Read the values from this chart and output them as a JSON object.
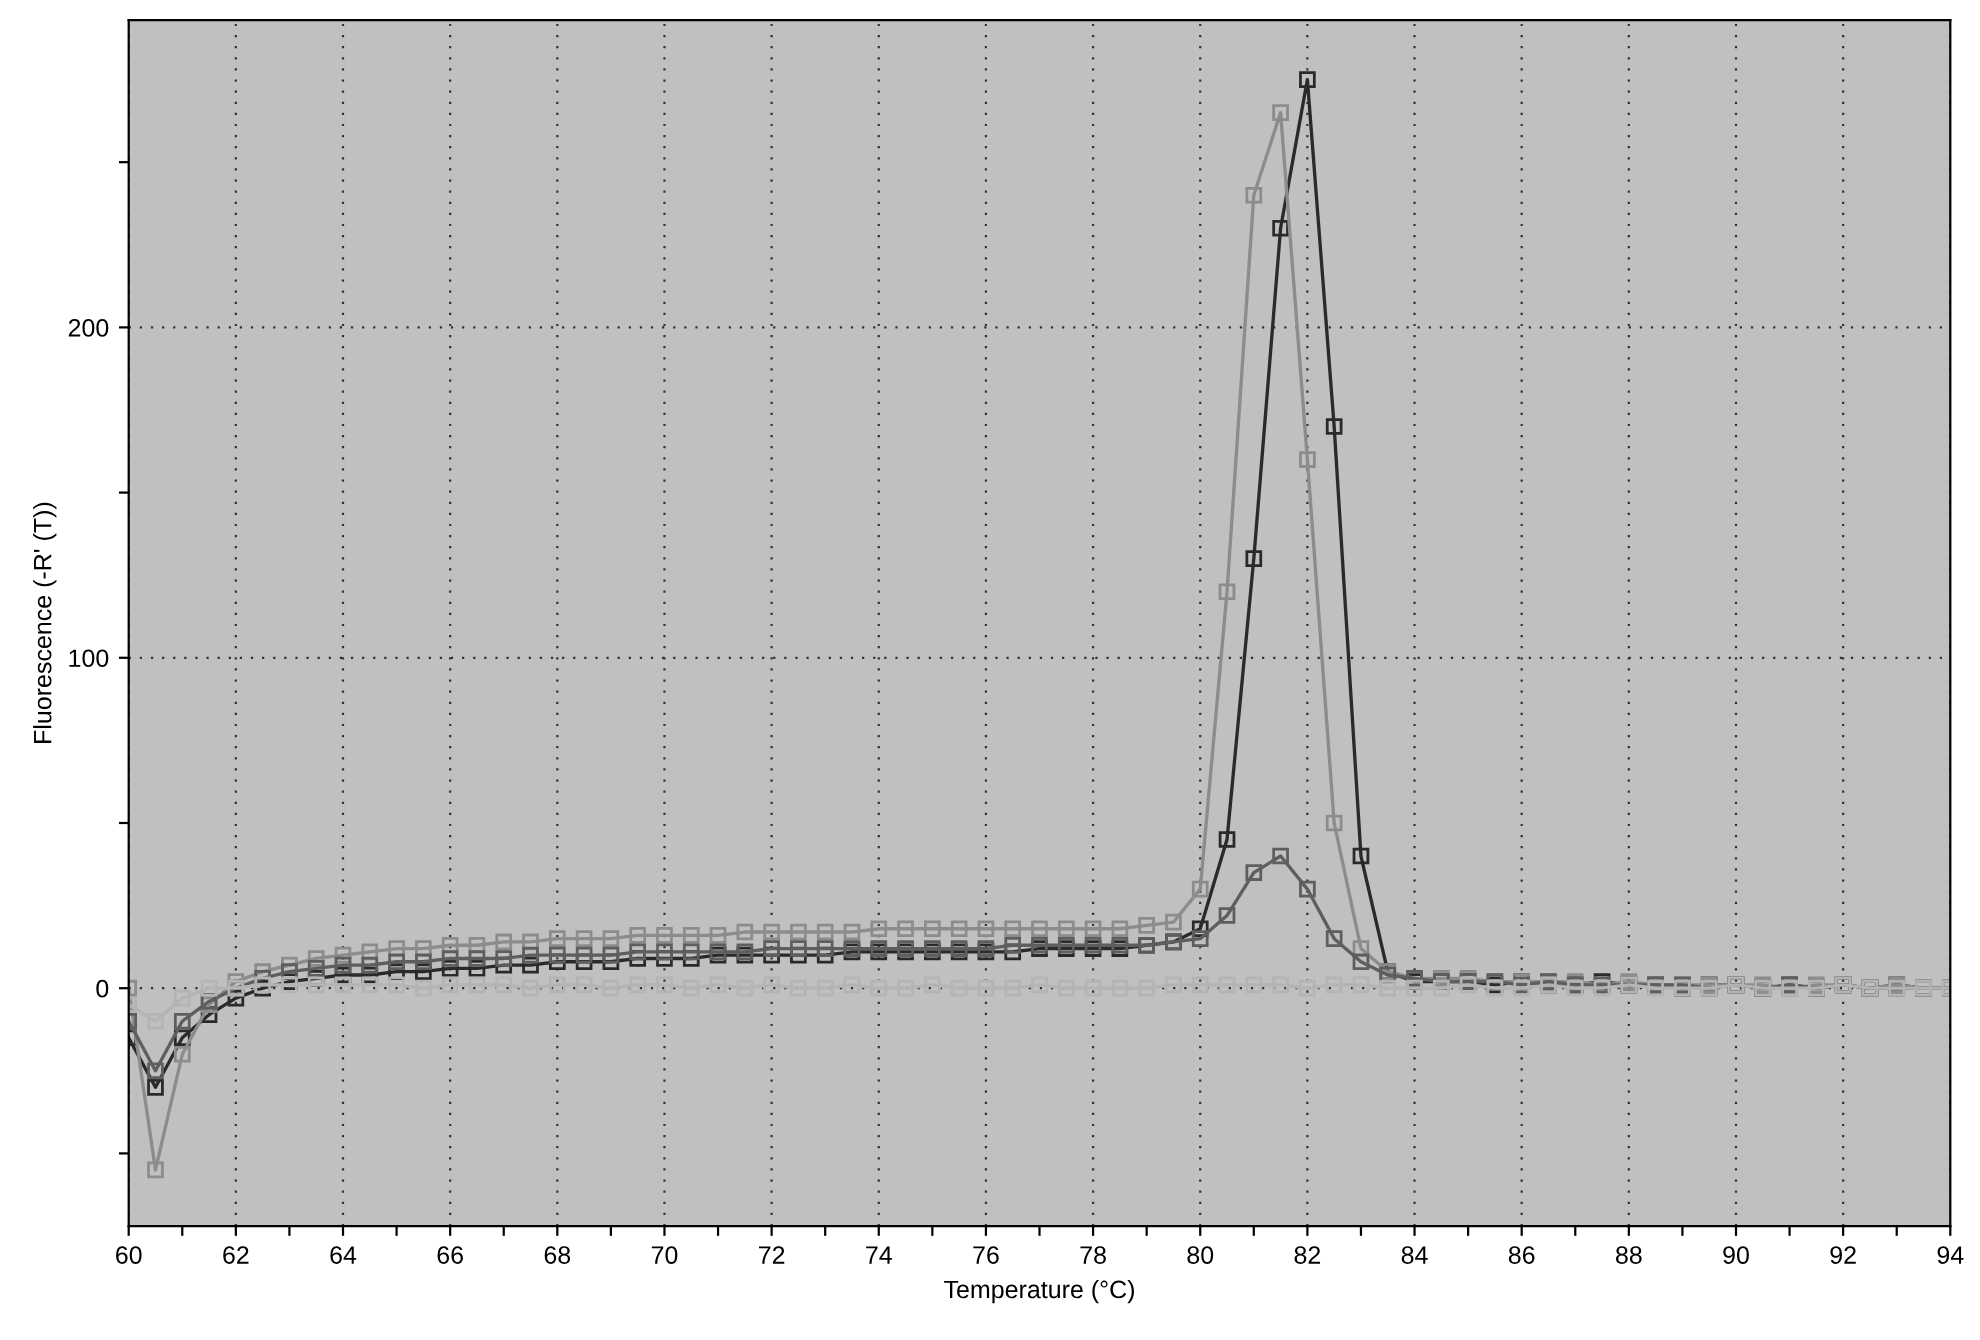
{
  "chart_data": {
    "type": "line",
    "xlabel": "Temperature (°C)",
    "ylabel": "Fluorescence (-R' (T))",
    "x": [
      60,
      60.5,
      61,
      61.5,
      62,
      62.5,
      63,
      63.5,
      64,
      64.5,
      65,
      65.5,
      66,
      66.5,
      67,
      67.5,
      68,
      68.5,
      69,
      69.5,
      70,
      70.5,
      71,
      71.5,
      72,
      72.5,
      73,
      73.5,
      74,
      74.5,
      75,
      75.5,
      76,
      76.5,
      77,
      77.5,
      78,
      78.5,
      79,
      79.5,
      80,
      80.5,
      81,
      81.5,
      82,
      82.5,
      83,
      83.5,
      84,
      84.5,
      85,
      85.5,
      86,
      86.5,
      87,
      87.5,
      88,
      88.5,
      89,
      89.5,
      90,
      90.5,
      91,
      91.5,
      92,
      92.5,
      93,
      93.5,
      94
    ],
    "series": [
      {
        "color": "#2a2a2a",
        "values": [
          -15,
          -30,
          -15,
          -8,
          -3,
          0,
          2,
          3,
          4,
          4,
          5,
          5,
          6,
          6,
          7,
          7,
          8,
          8,
          8,
          9,
          9,
          9,
          10,
          10,
          10,
          10,
          10,
          11,
          11,
          11,
          11,
          11,
          11,
          11,
          12,
          12,
          12,
          12,
          13,
          14,
          18,
          45,
          130,
          230,
          275,
          170,
          40,
          5,
          2,
          2,
          2,
          1,
          2,
          1,
          1,
          2,
          1,
          1,
          0,
          1,
          1,
          0,
          1,
          0,
          1,
          0,
          1,
          0,
          0
        ]
      },
      {
        "color": "#8c8c8c",
        "values": [
          0,
          -55,
          -20,
          -5,
          2,
          5,
          7,
          9,
          10,
          11,
          12,
          12,
          13,
          13,
          14,
          14,
          15,
          15,
          15,
          16,
          16,
          16,
          16,
          17,
          17,
          17,
          17,
          17,
          18,
          18,
          18,
          18,
          18,
          18,
          18,
          18,
          18,
          18,
          19,
          20,
          30,
          120,
          240,
          265,
          160,
          50,
          12,
          5,
          3,
          3,
          3,
          2,
          2,
          2,
          2,
          1,
          2,
          1,
          1,
          1,
          1,
          1,
          0,
          1,
          1,
          0,
          1,
          0,
          0
        ]
      },
      {
        "color": "#5e5e5e",
        "values": [
          -10,
          -25,
          -10,
          -4,
          0,
          3,
          5,
          6,
          7,
          7,
          8,
          8,
          9,
          9,
          9,
          10,
          10,
          10,
          10,
          11,
          11,
          11,
          11,
          11,
          12,
          12,
          12,
          12,
          12,
          12,
          12,
          12,
          12,
          13,
          13,
          13,
          13,
          13,
          13,
          14,
          15,
          22,
          35,
          40,
          30,
          15,
          8,
          4,
          3,
          2,
          2,
          2,
          1,
          2,
          1,
          1,
          1,
          1,
          1,
          0,
          1,
          0,
          1,
          0,
          1,
          0,
          0,
          0,
          0
        ]
      },
      {
        "color": "#b4b4b4",
        "values": [
          -5,
          -10,
          -3,
          0,
          0,
          1,
          1,
          1,
          1,
          1,
          1,
          0,
          1,
          1,
          1,
          0,
          1,
          1,
          0,
          1,
          1,
          0,
          1,
          0,
          1,
          0,
          0,
          1,
          0,
          0,
          1,
          0,
          0,
          0,
          1,
          0,
          0,
          0,
          0,
          1,
          1,
          1,
          1,
          1,
          0,
          1,
          1,
          0,
          0,
          0,
          1,
          0,
          0,
          1,
          0,
          0,
          1,
          0,
          0,
          0,
          1,
          0,
          0,
          0,
          1,
          0,
          0,
          0,
          0
        ]
      }
    ],
    "xlim": [
      60,
      94
    ],
    "ylim": [
      -72,
      293
    ],
    "xticks": [
      60,
      {
        "value": 61,
        "label": null
      },
      62,
      {
        "value": 63,
        "label": null
      },
      64,
      {
        "value": 65,
        "label": null
      },
      66,
      {
        "value": 67,
        "label": null
      },
      68,
      {
        "value": 69,
        "label": null
      },
      70,
      {
        "value": 71,
        "label": null
      },
      72,
      {
        "value": 73,
        "label": null
      },
      74,
      {
        "value": 75,
        "label": null
      },
      76,
      {
        "value": 77,
        "label": null
      },
      78,
      {
        "value": 79,
        "label": null
      },
      80,
      {
        "value": 81,
        "label": null
      },
      82,
      {
        "value": 83,
        "label": null
      },
      84,
      {
        "value": 85,
        "label": null
      },
      86,
      {
        "value": 87,
        "label": null
      },
      88,
      {
        "value": 89,
        "label": null
      },
      90,
      {
        "value": 91,
        "label": null
      },
      92,
      {
        "value": 93,
        "label": null
      },
      94
    ],
    "yticks": [
      {
        "value": -50,
        "label": null
      },
      0,
      {
        "value": 50,
        "label": null
      },
      100,
      {
        "value": 150,
        "label": null
      },
      200,
      {
        "value": 250,
        "label": null
      }
    ],
    "grid": true,
    "marker": "square",
    "line_style": "solid"
  }
}
